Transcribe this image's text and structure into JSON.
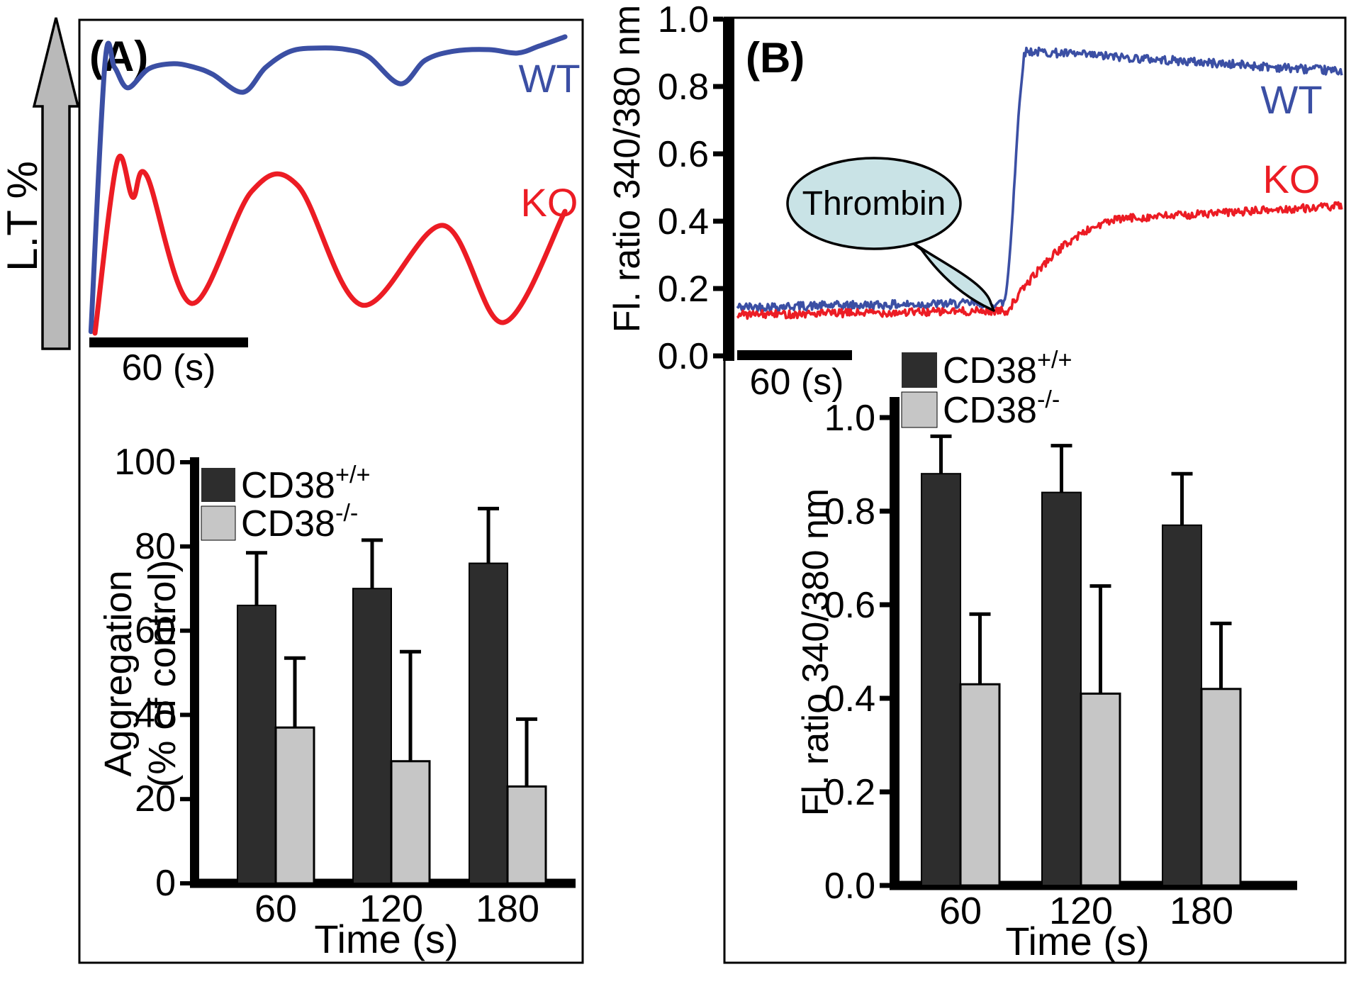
{
  "figure": {
    "panel_a_label": "(A)",
    "panel_b_label": "(B)"
  },
  "colors": {
    "wt_blue": "#3b4fa4",
    "ko_red": "#ec1c24",
    "bar_black": "#2d2d2d",
    "bar_gray": "#c6c6c6",
    "bubble_fill": "#c9e3e6",
    "arrow_gray": "#b9b9b9",
    "axis_black": "#000000"
  },
  "chart_data": [
    {
      "id": "a_traces",
      "panel": "A",
      "type": "line",
      "ylabel": "L.T %",
      "scalebar_label": "60 (s)",
      "legend_position": "inline-right",
      "grid": false,
      "series": [
        {
          "name": "WT",
          "color_key": "wt_blue",
          "points_frac": [
            [
              0.023,
              0.005
            ],
            [
              0.051,
              0.864
            ],
            [
              0.07,
              0.848
            ],
            [
              0.096,
              0.783
            ],
            [
              0.138,
              0.844
            ],
            [
              0.187,
              0.86
            ],
            [
              0.23,
              0.848
            ],
            [
              0.265,
              0.826
            ],
            [
              0.325,
              0.769
            ],
            [
              0.37,
              0.848
            ],
            [
              0.42,
              0.9
            ],
            [
              0.476,
              0.91
            ],
            [
              0.532,
              0.905
            ],
            [
              0.575,
              0.882
            ],
            [
              0.638,
              0.796
            ],
            [
              0.687,
              0.871
            ],
            [
              0.744,
              0.9
            ],
            [
              0.814,
              0.905
            ],
            [
              0.87,
              0.894
            ],
            [
              0.913,
              0.916
            ],
            [
              0.965,
              0.946
            ]
          ]
        },
        {
          "name": "KO",
          "color_key": "ko_red",
          "points_frac": [
            [
              0.031,
              0.0
            ],
            [
              0.075,
              0.548
            ],
            [
              0.106,
              0.434
            ],
            [
              0.134,
              0.502
            ],
            [
              0.223,
              0.095
            ],
            [
              0.342,
              0.452
            ],
            [
              0.434,
              0.471
            ],
            [
              0.561,
              0.09
            ],
            [
              0.723,
              0.344
            ],
            [
              0.842,
              0.034
            ],
            [
              0.965,
              0.389
            ]
          ]
        }
      ]
    },
    {
      "id": "a_bars",
      "panel": "A",
      "type": "bar",
      "xlabel": "Time (s)",
      "ylabel_line1": "Aggregation",
      "ylabel_line2": "(% of control)",
      "categories": [
        "60",
        "120",
        "180"
      ],
      "ylim": [
        0,
        100
      ],
      "ytick_labels": [
        "0",
        "20",
        "40",
        "60",
        "80",
        "100"
      ],
      "grid": false,
      "legend_position": "top-left",
      "series": [
        {
          "name_base": "CD38",
          "name_sup": "+/+",
          "color_key": "bar_black",
          "values": [
            66,
            70,
            76
          ],
          "errors_up": [
            12.5,
            11.5,
            13
          ]
        },
        {
          "name_base": "CD38",
          "name_sup": "-/-",
          "color_key": "bar_gray",
          "values": [
            37,
            29,
            23
          ],
          "errors_up": [
            16.5,
            26,
            16
          ]
        }
      ]
    },
    {
      "id": "b_traces",
      "panel": "B",
      "type": "line",
      "ylabel": "Fl. ratio 340/380 nm",
      "ylim": [
        0.0,
        1.0
      ],
      "ytick_labels": [
        "0.0",
        "0.2",
        "0.4",
        "0.6",
        "0.8",
        "1.0"
      ],
      "scalebar_label": "60 (s)",
      "annotation": "Thrombin",
      "grid": false,
      "series": [
        {
          "name": "WT",
          "color_key": "wt_blue",
          "baseline": 0.145,
          "rise_start_frac": 0.44,
          "rise_end_frac": 0.478,
          "plateau_start": 0.905,
          "plateau_end": 0.845,
          "noise": 0.013,
          "ease": 1.0
        },
        {
          "name": "KO",
          "color_key": "ko_red",
          "baseline": 0.122,
          "rise_start_frac": 0.447,
          "rise_end_frac": 0.66,
          "plateau_start": 0.41,
          "plateau_end": 0.445,
          "noise": 0.012,
          "ease": 0.55
        }
      ]
    },
    {
      "id": "b_bars",
      "panel": "B",
      "type": "bar",
      "xlabel": "Time (s)",
      "ylabel": "Fl. ratio 340/380 nm",
      "categories": [
        "60",
        "120",
        "180"
      ],
      "ylim": [
        0.0,
        1.0
      ],
      "ytick_labels": [
        "0.0",
        "0.2",
        "0.4",
        "0.6",
        "0.8",
        "1.0"
      ],
      "grid": false,
      "legend_position": "top-left",
      "series": [
        {
          "name_base": "CD38",
          "name_sup": "+/+",
          "color_key": "bar_black",
          "values": [
            0.88,
            0.84,
            0.77
          ],
          "errors_up": [
            0.08,
            0.1,
            0.11
          ]
        },
        {
          "name_base": "CD38",
          "name_sup": "-/-",
          "color_key": "bar_gray",
          "values": [
            0.43,
            0.41,
            0.42
          ],
          "errors_up": [
            0.15,
            0.23,
            0.14
          ]
        }
      ]
    }
  ]
}
